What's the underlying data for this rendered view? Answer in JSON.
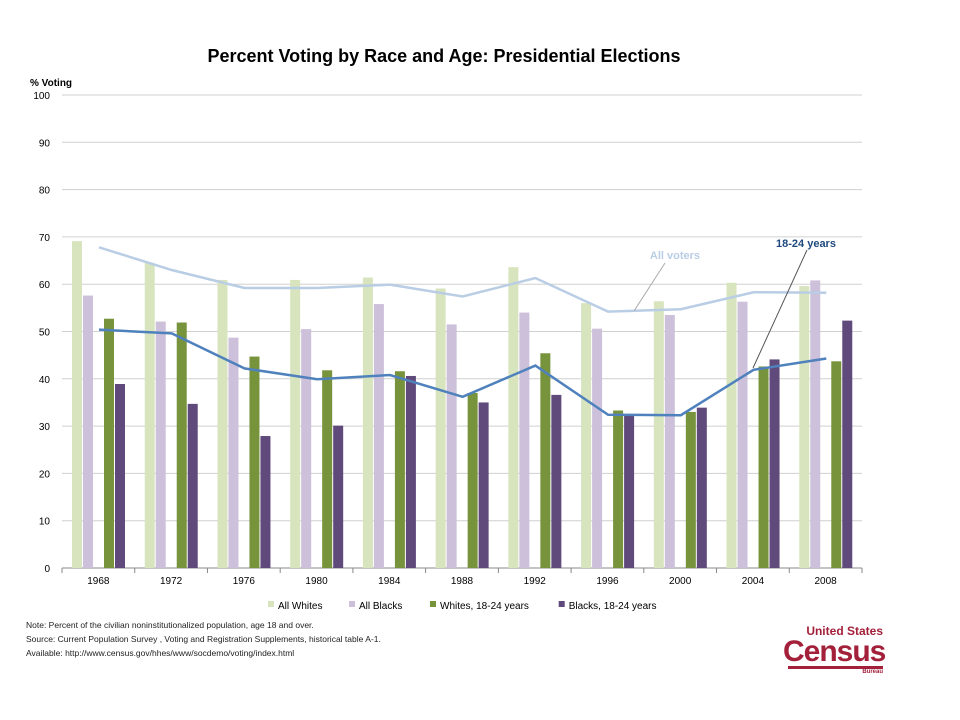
{
  "chart_data": {
    "type": "bar",
    "title": "Percent Voting by Race and Age:  Presidential Elections",
    "ylabel": "% Voting",
    "xlabel": "",
    "ylim": [
      0,
      100
    ],
    "yticks": [
      "0",
      "10",
      "20",
      "30",
      "40",
      "50",
      "60",
      "70",
      "80",
      "90",
      "100"
    ],
    "grid": true,
    "legend_position": "bottom",
    "categories": [
      "1968",
      "1972",
      "1976",
      "1980",
      "1984",
      "1988",
      "1992",
      "1996",
      "2000",
      "2004",
      "2008"
    ],
    "series": [
      {
        "name": "All Whites",
        "color": "#d7e4bd",
        "values": [
          69.1,
          64.5,
          60.9,
          60.9,
          61.4,
          59.1,
          63.6,
          56.0,
          56.4,
          60.3,
          59.6
        ]
      },
      {
        "name": "All Blacks",
        "color": "#ccc0da",
        "values": [
          57.6,
          52.1,
          48.7,
          50.5,
          55.8,
          51.5,
          54.0,
          50.6,
          53.5,
          56.3,
          60.8
        ]
      },
      {
        "name": "Whites, 18-24 years",
        "color": "#77933c",
        "values": [
          52.7,
          51.9,
          44.7,
          41.8,
          41.6,
          37.0,
          45.4,
          33.3,
          33.0,
          42.6,
          43.7
        ]
      },
      {
        "name": "Blacks, 18-24 years",
        "color": "#604a7b",
        "values": [
          38.9,
          34.7,
          27.9,
          30.1,
          40.6,
          35.0,
          36.6,
          32.4,
          33.9,
          44.1,
          52.3
        ]
      }
    ],
    "lines": [
      {
        "name": "All voters",
        "color": "#b9cde5",
        "values": [
          67.8,
          63.0,
          59.2,
          59.2,
          59.9,
          57.4,
          61.3,
          54.2,
          54.7,
          58.3,
          58.2
        ]
      },
      {
        "name": "18-24 years",
        "color": "#4f81bd",
        "values": [
          50.4,
          49.6,
          42.2,
          39.9,
          40.8,
          36.2,
          42.8,
          32.4,
          32.3,
          41.9,
          44.3
        ]
      }
    ]
  },
  "notes": [
    "Note: Percent of the civilian noninstitutionalized population, age 18 and over.",
    "Source: Current Population Survey , Voting and  Registration Supplements, historical table A-1.",
    "Available: http://www.census.gov/hhes/www/socdemo/voting/index.html"
  ],
  "logo": {
    "line1": "United States",
    "line2": "Census",
    "line3": "Bureau",
    "color": "#a3203a"
  }
}
